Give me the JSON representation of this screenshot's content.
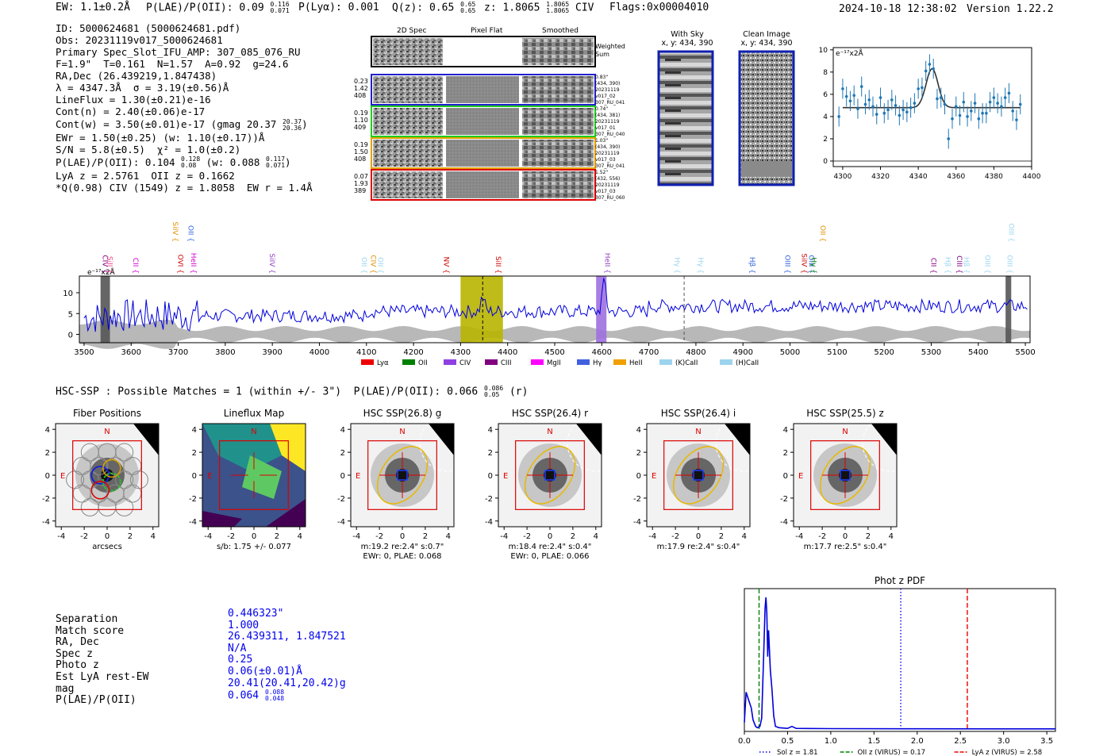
{
  "header": {
    "ew": "EW: 1.1±0.2Å",
    "plae": "P(LAE)/P(OII): 0.09",
    "plae_hi": "0.116",
    "plae_lo": "0.071",
    "plya": "P(Lyα): 0.001",
    "qz": "Q(z): 0.65",
    "qz_hi": "0.65",
    "qz_lo": "0.65",
    "z": "z: 1.8065",
    "z_hi": "1.8065",
    "z_lo": "1.8065",
    "z_line": "CIV",
    "flags": "Flags:0x00004010",
    "datetime": "2024-10-18 12:38:02",
    "version": "Version 1.22.2"
  },
  "info": {
    "l1": "ID: 5000624681 (5000624681.pdf)",
    "l2": "Obs: 20231119v017_5000624681",
    "l3": "Primary Spec_Slot_IFU_AMP: 307_085_076_RU",
    "l4": "F=1.9\"  T=0.161  N=1.57  A=0.92  g=24.6",
    "l5": "RA,Dec (26.439219,1.847438)",
    "l6": "λ = 4347.3Å  σ = 3.19(±0.56)Å",
    "l7": "LineFlux = 1.30(±0.21)e-16",
    "l8": "Cont(n) = 2.40(±0.06)e-17",
    "l9": "Cont(w) = 3.50(±0.01)e-17 (gmag 20.37",
    "l9_hi": "20.37",
    "l9_lo": "20.36",
    "l10": "EWr = 1.50(±0.25) (w: 1.10(±0.17))Å",
    "l11": "S/N = 5.8(±0.5)  χ² = 1.0(±0.2)",
    "l12": "P(LAE)/P(OII): 0.104",
    "l12_hi": "0.128",
    "l12_lo": "0.08",
    "l12b": "(w: 0.088",
    "l12b_hi": "0.117",
    "l12b_lo": "0.071",
    "l13": "LyA z = 2.5761  OII z = 0.1662",
    "l14": "*Q(0.98) CIV (1549) z = 1.8058  EW r = 1.4Å"
  },
  "cutouts": {
    "col_2d": "2D Spec",
    "col_flat": "Pixel Flat",
    "col_smooth": "Smoothed",
    "weighted": "Weighted",
    "sum": "Sum",
    "rows": [
      {
        "a": "0.23",
        "b": "1.42",
        "c": "408",
        "d1": "0.83\"",
        "d2": "(434, 390)",
        "d3": "20231119",
        "d4": "v017_02",
        "d5": "307_RU_041"
      },
      {
        "a": "0.19",
        "b": "1.10",
        "c": "409",
        "d1": "0.74\"",
        "d2": "(434, 381)",
        "d3": "20231119",
        "d4": "v017_01",
        "d5": "307_RU_040"
      },
      {
        "a": "0.19",
        "b": "1.50",
        "c": "408",
        "d1": "1.03\"",
        "d2": "(434, 390)",
        "d3": "20231119",
        "d4": "v017_03",
        "d5": "307_RU_041"
      },
      {
        "a": "0.07",
        "b": "1.93",
        "c": "389",
        "d1": "1.52\"",
        "d2": "(432, 556)",
        "d3": "20231119",
        "d4": "v017_03",
        "d5": "307_RU_060"
      }
    ],
    "with_sky": "With Sky",
    "with_sky_xy": "x, y: 434, 390",
    "clean": "Clean Image",
    "clean_xy": "x, y: 434, 390"
  },
  "zoom_chart": {
    "type": "scatter",
    "unit_label": "e⁻¹⁷x2Å",
    "xlim": [
      4295,
      4400
    ],
    "ylim": [
      -0.5,
      10.2
    ],
    "xticks": [
      "4300",
      "4320",
      "4340",
      "4360",
      "4380",
      "4400"
    ],
    "yticks": [
      "0",
      "2",
      "4",
      "6",
      "8",
      "10"
    ],
    "fit": {
      "center": 4347.3,
      "sigma": 3.19,
      "amplitude": 3.5,
      "continuum": 4.8
    },
    "x": [
      4298,
      4300,
      4302,
      4304,
      4306,
      4308,
      4310,
      4312,
      4314,
      4316,
      4318,
      4320,
      4322,
      4324,
      4326,
      4328,
      4330,
      4332,
      4334,
      4336,
      4338,
      4340,
      4342,
      4344,
      4346,
      4348,
      4350,
      4352,
      4354,
      4356,
      4358,
      4360,
      4362,
      4364,
      4366,
      4368,
      4370,
      4372,
      4374,
      4376,
      4378,
      4380,
      4382,
      4384,
      4386,
      4388,
      4390,
      4392,
      4394
    ],
    "y": [
      4.0,
      6.5,
      5.8,
      5.4,
      5.9,
      4.7,
      6.7,
      5.1,
      5.5,
      4.9,
      4.2,
      5.7,
      4.3,
      4.6,
      5.5,
      5.0,
      4.1,
      4.6,
      4.4,
      4.8,
      5.2,
      6.5,
      6.6,
      8.1,
      8.7,
      8.3,
      5.6,
      5.7,
      5.1,
      2.0,
      3.8,
      4.9,
      4.1,
      5.3,
      4.0,
      4.5,
      5.2,
      3.8,
      4.3,
      4.3,
      5.3,
      5.7,
      5.2,
      4.9,
      5.7,
      6.1,
      4.5,
      3.7,
      5.1
    ]
  },
  "full_spectrum": {
    "type": "line",
    "unit_label": "e⁻¹⁷x2Å",
    "xlim": [
      3490,
      5510
    ],
    "ylim": [
      -2,
      14
    ],
    "xticks": [
      "3500",
      "3600",
      "3700",
      "3800",
      "3900",
      "4000",
      "4100",
      "4200",
      "4300",
      "4400",
      "4500",
      "4600",
      "4700",
      "4800",
      "4900",
      "5000",
      "5100",
      "5200",
      "5300",
      "5400",
      "5500"
    ],
    "yticks": [
      "0",
      "5",
      "10"
    ],
    "highlights": [
      {
        "x0": 4300,
        "x1": 4390,
        "color": "#b8b400"
      },
      {
        "x0": 4588,
        "x1": 4610,
        "color": "#a070e0"
      },
      {
        "x0": 3535,
        "x1": 3555,
        "color": "#555555"
      },
      {
        "x0": 5458,
        "x1": 5470,
        "color": "#555555"
      }
    ],
    "markers": [
      {
        "x": 4347,
        "style": "dashed",
        "color": "#000"
      },
      {
        "x": 4775,
        "style": "dashed",
        "color": "#555"
      }
    ],
    "line_labels": [
      {
        "x": 3535,
        "row": 1,
        "t": "CIV",
        "c": "#800080"
      },
      {
        "x": 3545,
        "row": 1,
        "t": "SiII",
        "c": "#ee4488"
      },
      {
        "x": 3600,
        "row": 1,
        "t": "CII",
        "c": "#cc00cc"
      },
      {
        "x": 3684,
        "row": 0,
        "t": "SiIV",
        "c": "#e09000"
      },
      {
        "x": 3695,
        "row": 1,
        "t": "OVI",
        "c": "#cc0000"
      },
      {
        "x": 3717,
        "row": 0,
        "t": "OII",
        "c": "#3060e0"
      },
      {
        "x": 3723,
        "row": 1,
        "t": "HeII",
        "c": "#cc00cc"
      },
      {
        "x": 3890,
        "row": 1,
        "t": "SiIV",
        "c": "#9040c0"
      },
      {
        "x": 4085,
        "row": 1,
        "t": "OII",
        "c": "#9cd4ee"
      },
      {
        "x": 4105,
        "row": 1,
        "t": "CIV",
        "c": "#e09000"
      },
      {
        "x": 4120,
        "row": 1,
        "t": "OII",
        "c": "#9cd4ee"
      },
      {
        "x": 4260,
        "row": 1,
        "t": "NV",
        "c": "#cc0000"
      },
      {
        "x": 4370,
        "row": 1,
        "t": "SiII",
        "c": "#cc0000"
      },
      {
        "x": 4602,
        "row": 1,
        "t": "HeII",
        "c": "#9040c0"
      },
      {
        "x": 4750,
        "row": 1,
        "t": "Hγ",
        "c": "#9cd4ee"
      },
      {
        "x": 4800,
        "row": 1,
        "t": "Hγ",
        "c": "#9cd4ee"
      },
      {
        "x": 4910,
        "row": 1,
        "t": "Hβ",
        "c": "#3060e0"
      },
      {
        "x": 4985,
        "row": 1,
        "t": "OIII",
        "c": "#3060e0"
      },
      {
        "x": 5020,
        "row": 1,
        "t": "SiIV",
        "c": "#cc0000"
      },
      {
        "x": 5035,
        "row": 1,
        "t": "OIII",
        "c": "#3060e0"
      },
      {
        "x": 5040,
        "row": 1,
        "t": "Hγ",
        "c": "#008000"
      },
      {
        "x": 5060,
        "row": 0,
        "t": "OII",
        "c": "#e09000"
      },
      {
        "x": 5295,
        "row": 1,
        "t": "CII",
        "c": "#800080"
      },
      {
        "x": 5325,
        "row": 1,
        "t": "Hβ",
        "c": "#9cd4ee"
      },
      {
        "x": 5350,
        "row": 1,
        "t": "CIII",
        "c": "#800080"
      },
      {
        "x": 5365,
        "row": 1,
        "t": "Hβ",
        "c": "#9cd4ee"
      },
      {
        "x": 5410,
        "row": 1,
        "t": "OIII",
        "c": "#9cd4ee"
      },
      {
        "x": 5460,
        "row": 0,
        "t": "OIII",
        "c": "#9cd4ee"
      },
      {
        "x": 5457,
        "row": 1,
        "t": "OIII",
        "c": "#9cd4ee"
      }
    ],
    "legend": [
      {
        "t": "Lyα",
        "c": "#ee0000"
      },
      {
        "t": "OII",
        "c": "#008000"
      },
      {
        "t": "CIV",
        "c": "#9040e0"
      },
      {
        "t": "CIII",
        "c": "#800080"
      },
      {
        "t": "MgII",
        "c": "#ff00ff"
      },
      {
        "t": "Hγ",
        "c": "#4060e0"
      },
      {
        "t": "HeII",
        "c": "#f0a000"
      },
      {
        "t": "(K)CaII",
        "c": "#9cd4ee"
      },
      {
        "t": "(H)CaII",
        "c": "#9cd4ee"
      }
    ]
  },
  "hsc": {
    "title": "HSC-SSP : Possible Matches = 1 (within +/- 3\")  P(LAE)/P(OII): 0.066",
    "title_hi": "0.086",
    "title_lo": "0.05",
    "title_tail": "(r)",
    "panels": [
      {
        "title": "Fiber Positions",
        "xlabel": "arcsecs",
        "cap1": "",
        "cap2": ""
      },
      {
        "title": "Lineflux Map",
        "xlabel": "",
        "cap1": "s/b: 1.75 +/- 0.077",
        "cap2": ""
      },
      {
        "title": "HSC SSP(26.8) g",
        "xlabel": "",
        "cap1": "m:19.2  re:2.4\"  s:0.7\"",
        "cap2": "EWr: 0, PLAE: 0.068"
      },
      {
        "title": "HSC SSP(26.4) r",
        "xlabel": "",
        "cap1": "m:18.4  re:2.4\"  s:0.4\"",
        "cap2": "EWr: 0, PLAE: 0.066"
      },
      {
        "title": "HSC SSP(26.4) i",
        "xlabel": "",
        "cap1": "m:17.9  re:2.4\"  s:0.4\"",
        "cap2": ""
      },
      {
        "title": "HSC SSP(25.5) z",
        "xlabel": "",
        "cap1": "m:17.7  re:2.5\"  s:0.4\"",
        "cap2": ""
      }
    ],
    "ticks": [
      "-4",
      "-2",
      "0",
      "2",
      "4"
    ],
    "north": "N",
    "east": "E"
  },
  "match_table": {
    "labels": [
      "Separation",
      "Match score",
      "RA, Dec",
      "Spec z",
      "Photo z",
      "Est LyA rest-EW",
      "mag",
      "P(LAE)/P(OII)"
    ],
    "values": [
      "0.446323\"",
      "1.000",
      "26.439311, 1.847521",
      "N/A",
      "0.25",
      "0.06(±0.01)Å",
      "20.41(20.41,20.42)g",
      "0.064"
    ],
    "plae_hi": "0.088",
    "plae_lo": "0.048"
  },
  "photz_chart": {
    "type": "line",
    "title": "Phot z PDF",
    "xlim": [
      0,
      3.6
    ],
    "xticks": [
      "0.0",
      "0.5",
      "1.0",
      "1.5",
      "2.0",
      "2.5",
      "3.0",
      "3.5"
    ],
    "x": [
      0.0,
      0.02,
      0.05,
      0.08,
      0.1,
      0.13,
      0.15,
      0.18,
      0.2,
      0.22,
      0.24,
      0.25,
      0.26,
      0.27,
      0.28,
      0.3,
      0.32,
      0.34,
      0.36,
      0.4,
      0.5,
      0.55,
      0.6,
      1.0,
      2.0,
      3.0,
      3.6
    ],
    "y": [
      0.05,
      0.28,
      0.22,
      0.16,
      0.07,
      0.02,
      0.01,
      0.02,
      0.08,
      0.5,
      0.92,
      1.0,
      0.88,
      0.55,
      0.75,
      0.45,
      0.3,
      0.1,
      0.02,
      0.01,
      0.005,
      0.02,
      0.005,
      0.003,
      0.002,
      0.001,
      0.001
    ],
    "vlines": [
      {
        "x": 1.81,
        "color": "#0000ee",
        "style": "dotted",
        "label": "Sol z = 1.81"
      },
      {
        "x": 0.17,
        "color": "#008000",
        "style": "dashed",
        "label": "OII z (VIRUS) = 0.17"
      },
      {
        "x": 2.58,
        "color": "#ee0000",
        "style": "dashed",
        "label": "LyA z (VIRUS) = 2.58"
      }
    ]
  }
}
